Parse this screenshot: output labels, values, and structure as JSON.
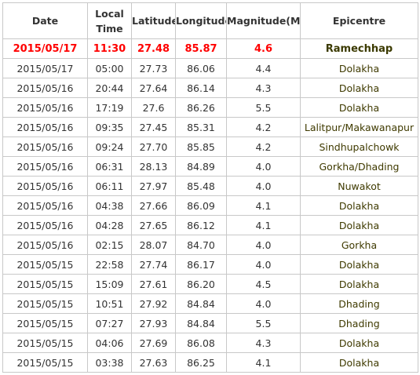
{
  "headers": {
    "date": "Date",
    "local_time_line1": "Local",
    "local_time_line2": "Time",
    "latitude": "Latitude",
    "longitude": "Longitude",
    "magnitude": "Magnitude(ML)",
    "epicentre": "Epicentre"
  },
  "highlight_color": "#ff0000",
  "rows": [
    {
      "date": "2015/05/17",
      "time": "11:30",
      "lat": "27.48",
      "lon": "85.87",
      "mag": "4.6",
      "epicentre": "Ramechhap",
      "highlight": true
    },
    {
      "date": "2015/05/17",
      "time": "05:00",
      "lat": "27.73",
      "lon": "86.06",
      "mag": "4.4",
      "epicentre": "Dolakha",
      "highlight": false
    },
    {
      "date": "2015/05/16",
      "time": "20:44",
      "lat": "27.64",
      "lon": "86.14",
      "mag": "4.3",
      "epicentre": "Dolakha",
      "highlight": false
    },
    {
      "date": "2015/05/16",
      "time": "17:19",
      "lat": "27.6",
      "lon": "86.26",
      "mag": "5.5",
      "epicentre": "Dolakha",
      "highlight": false
    },
    {
      "date": "2015/05/16",
      "time": "09:35",
      "lat": "27.45",
      "lon": "85.31",
      "mag": "4.2",
      "epicentre": "Lalitpur/Makawanapur",
      "highlight": false
    },
    {
      "date": "2015/05/16",
      "time": "09:24",
      "lat": "27.70",
      "lon": "85.85",
      "mag": "4.2",
      "epicentre": "Sindhupalchowk",
      "highlight": false
    },
    {
      "date": "2015/05/16",
      "time": "06:31",
      "lat": "28.13",
      "lon": "84.89",
      "mag": "4.0",
      "epicentre": "Gorkha/Dhading",
      "highlight": false
    },
    {
      "date": "2015/05/16",
      "time": "06:11",
      "lat": "27.97",
      "lon": "85.48",
      "mag": "4.0",
      "epicentre": "Nuwakot",
      "highlight": false
    },
    {
      "date": "2015/05/16",
      "time": "04:38",
      "lat": "27.66",
      "lon": "86.09",
      "mag": "4.1",
      "epicentre": "Dolakha",
      "highlight": false
    },
    {
      "date": "2015/05/16",
      "time": "04:28",
      "lat": "27.65",
      "lon": "86.12",
      "mag": "4.1",
      "epicentre": "Dolakha",
      "highlight": false
    },
    {
      "date": "2015/05/16",
      "time": "02:15",
      "lat": "28.07",
      "lon": "84.70",
      "mag": "4.0",
      "epicentre": "Gorkha",
      "highlight": false
    },
    {
      "date": "2015/05/15",
      "time": "22:58",
      "lat": "27.74",
      "lon": "86.17",
      "mag": "4.0",
      "epicentre": "Dolakha",
      "highlight": false
    },
    {
      "date": "2015/05/15",
      "time": "15:09",
      "lat": "27.61",
      "lon": "86.20",
      "mag": "4.5",
      "epicentre": "Dolakha",
      "highlight": false
    },
    {
      "date": "2015/05/15",
      "time": "10:51",
      "lat": "27.92",
      "lon": "84.84",
      "mag": "4.0",
      "epicentre": "Dhading",
      "highlight": false
    },
    {
      "date": "2015/05/15",
      "time": "07:27",
      "lat": "27.93",
      "lon": "84.84",
      "mag": "5.5",
      "epicentre": "Dhading",
      "highlight": false
    },
    {
      "date": "2015/05/15",
      "time": "04:06",
      "lat": "27.69",
      "lon": "86.08",
      "mag": "4.3",
      "epicentre": "Dolakha",
      "highlight": false
    },
    {
      "date": "2015/05/15",
      "time": "03:38",
      "lat": "27.63",
      "lon": "86.25",
      "mag": "4.1",
      "epicentre": "Dolakha",
      "highlight": false
    }
  ]
}
